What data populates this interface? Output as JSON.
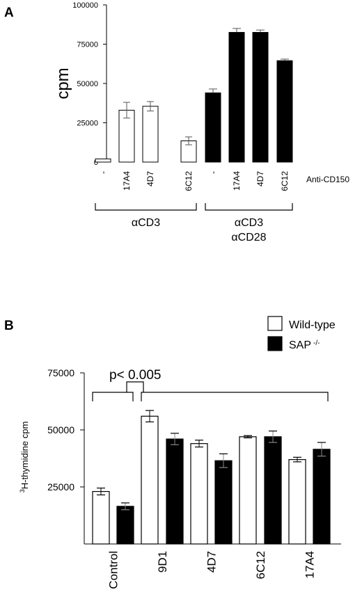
{
  "chart_data": [
    {
      "type": "bar",
      "panel_label": "A",
      "ylabel": "cpm",
      "ylim": [
        0,
        100000
      ],
      "yticks": [
        "0",
        "25000",
        "50000",
        "75000",
        "100000"
      ],
      "categories": [
        "-",
        "17A4",
        "4D7",
        "6C12",
        "-",
        "17A4",
        "4D7",
        "6C12"
      ],
      "values": [
        2000,
        33000,
        35500,
        13500,
        44000,
        82500,
        82500,
        64500
      ],
      "errors": [
        0,
        5000,
        3000,
        2500,
        2500,
        2500,
        1500,
        1000
      ],
      "fills": [
        "white",
        "white",
        "white",
        "white",
        "black",
        "black",
        "black",
        "black"
      ],
      "annotation": "Anti-CD150",
      "groups": [
        {
          "lines": [
            "αCD3"
          ],
          "span": [
            0,
            3
          ]
        },
        {
          "lines": [
            "αCD3",
            "αCD28"
          ],
          "span": [
            4,
            7
          ]
        }
      ]
    },
    {
      "type": "bar",
      "panel_label": "B",
      "ylabel_sup": "3",
      "ylabel": "H-thymidine cpm",
      "ylim": [
        0,
        75000
      ],
      "yticks": [
        "25000",
        "50000",
        "75000"
      ],
      "categories": [
        "Control",
        "9D1",
        "4D7",
        "6C12",
        "17A4"
      ],
      "series": [
        {
          "name": "Wild-type",
          "values": [
            23000,
            56000,
            44000,
            47000,
            37000
          ],
          "errors": [
            1500,
            2500,
            1500,
            500,
            1000
          ]
        },
        {
          "name": "SAP",
          "name_sup": "-/-",
          "values": [
            16500,
            46000,
            36500,
            47000,
            41500
          ],
          "errors": [
            1500,
            2500,
            3000,
            2500,
            3000
          ]
        }
      ],
      "significance": "p< 0.005"
    }
  ]
}
